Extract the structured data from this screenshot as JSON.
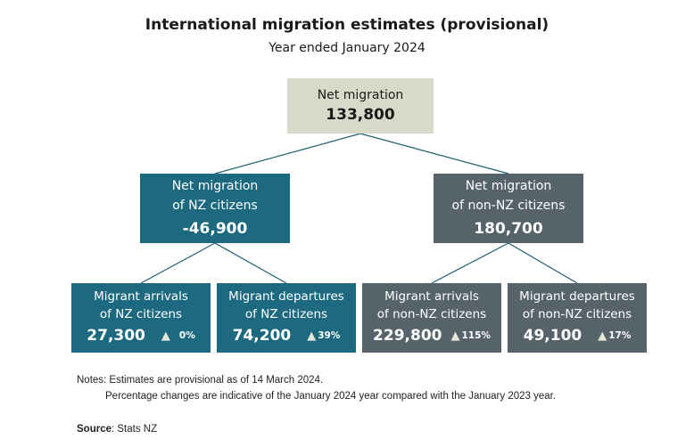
{
  "title": "International migration estimates (provisional)",
  "subtitle": "Year ended January 2024",
  "root": {
    "label": "Net migration",
    "value": "133,800"
  },
  "nz": {
    "label_line1": "Net migration",
    "label_line2": "of NZ citizens",
    "value": "-46,900"
  },
  "non_nz": {
    "label_line1": "Net migration",
    "label_line2": "of non-NZ citizens",
    "value": "180,700"
  },
  "leaves": [
    {
      "line1": "Migrant arrivals",
      "line2": "of NZ citizens",
      "value": "27,300",
      "change": "0%"
    },
    {
      "line1": "Migrant departures",
      "line2": "of NZ citizens",
      "value": "74,200",
      "change": "39%"
    },
    {
      "line1": "Migrant arrivals",
      "line2": "of non-NZ citizens",
      "value": "229,800",
      "change": "115%"
    },
    {
      "line1": "Migrant departures",
      "line2": "of non-NZ citizens",
      "value": "49,100",
      "change": "17%"
    }
  ],
  "notes": {
    "line1": "Notes: Estimates are provisional as of 14 March 2024.",
    "line2": "Percentage changes are indicative of the January 2024 year compared with the January 2023 year."
  },
  "source": {
    "label": "Source",
    "text": ": Stats NZ"
  },
  "icons": {
    "change_indicator": "up-triangle-icon"
  },
  "colors": {
    "root": "#d9d9c9",
    "nz": "#1d6a80",
    "non_nz": "#56636b",
    "connector": "#1e5d70"
  }
}
